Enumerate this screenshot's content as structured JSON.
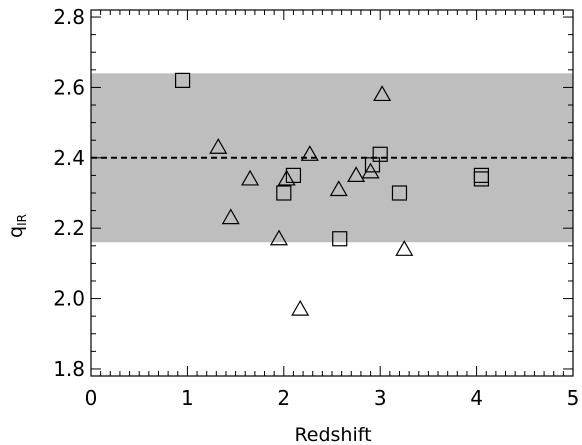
{
  "chart_data": {
    "type": "scatter",
    "xlabel": "Redshift",
    "ylabel": "q",
    "ylabel_subscript": "IR",
    "xlim": [
      0,
      5
    ],
    "ylim": [
      1.78,
      2.82
    ],
    "xticks": [
      0,
      1,
      2,
      3,
      4,
      5
    ],
    "xtick_labels": [
      "0",
      "1",
      "2",
      "3",
      "4",
      "5"
    ],
    "yticks": [
      1.8,
      2.0,
      2.2,
      2.4,
      2.6,
      2.8
    ],
    "ytick_labels": [
      "1.8",
      "2.0",
      "2.2",
      "2.4",
      "2.6",
      "2.8"
    ],
    "grid": false,
    "reference_line": {
      "y": 2.4,
      "style": "dashed"
    },
    "shaded_band": {
      "y": [
        2.16,
        2.64
      ],
      "color": "#bebebe"
    },
    "series": [
      {
        "marker": "square",
        "points": [
          {
            "x": 0.95,
            "y": 2.62
          },
          {
            "x": 2.0,
            "y": 2.3
          },
          {
            "x": 2.1,
            "y": 2.35
          },
          {
            "x": 2.58,
            "y": 2.17
          },
          {
            "x": 2.92,
            "y": 2.38
          },
          {
            "x": 3.0,
            "y": 2.41
          },
          {
            "x": 3.2,
            "y": 2.3
          },
          {
            "x": 4.05,
            "y": 2.35
          },
          {
            "x": 4.05,
            "y": 2.34
          }
        ]
      },
      {
        "marker": "triangle",
        "points": [
          {
            "x": 1.32,
            "y": 2.43
          },
          {
            "x": 1.45,
            "y": 2.23
          },
          {
            "x": 1.65,
            "y": 2.34
          },
          {
            "x": 1.95,
            "y": 2.17
          },
          {
            "x": 2.03,
            "y": 2.34
          },
          {
            "x": 2.17,
            "y": 1.97
          },
          {
            "x": 2.27,
            "y": 2.41
          },
          {
            "x": 2.57,
            "y": 2.31
          },
          {
            "x": 2.75,
            "y": 2.35
          },
          {
            "x": 2.9,
            "y": 2.36
          },
          {
            "x": 3.02,
            "y": 2.58
          },
          {
            "x": 3.25,
            "y": 2.14
          }
        ]
      }
    ]
  }
}
